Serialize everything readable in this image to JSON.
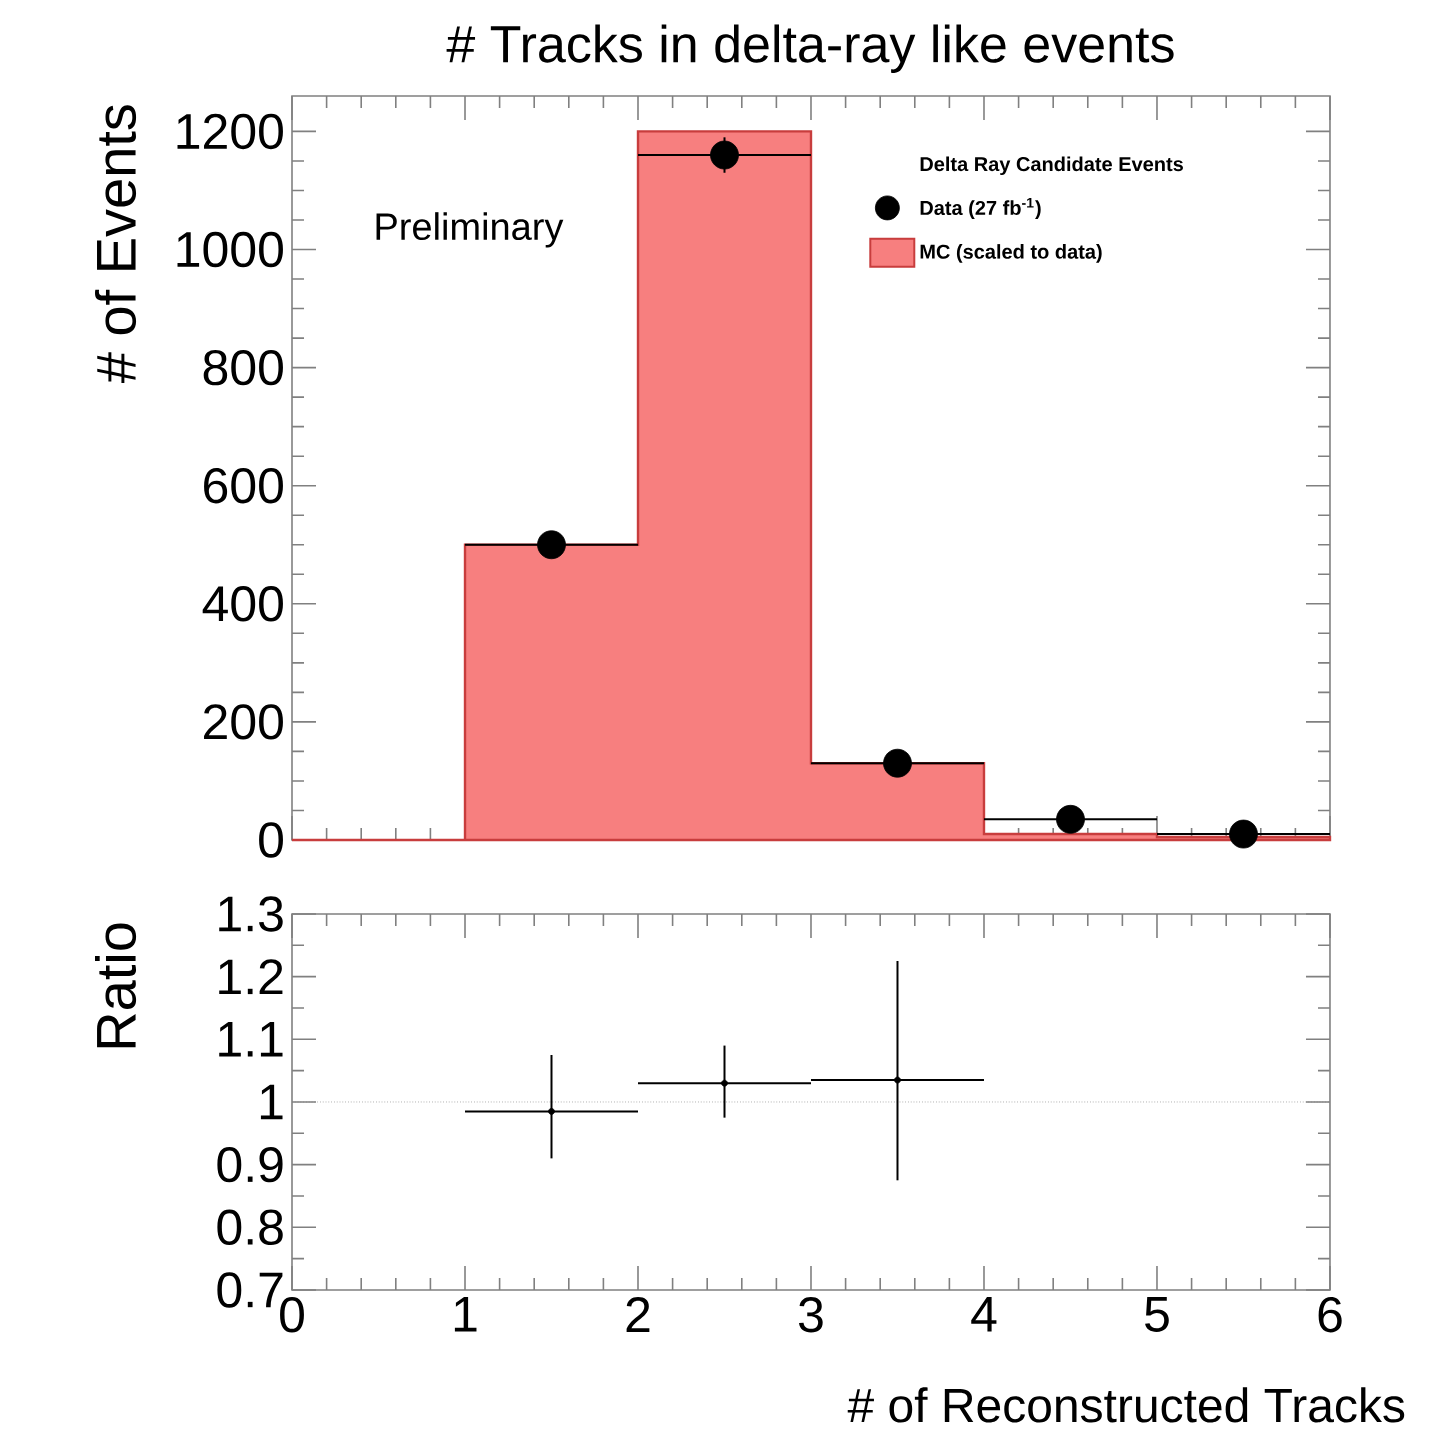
{
  "chart_data": [
    {
      "type": "histogram",
      "title": "# Tracks in delta-ray like events",
      "ylabel": "# of Events",
      "legend_title": "Delta Ray Candidate Events",
      "annotations": [
        "Preliminary"
      ],
      "bins": [
        0,
        1,
        2,
        3,
        4,
        5,
        6
      ],
      "series": [
        {
          "name": "MC (scaled to data)",
          "type": "histogram",
          "color": "#f77f7f",
          "values": [
            0,
            500,
            1200,
            130,
            10,
            5
          ]
        },
        {
          "name": "Data (27 fb$^{-1}$)",
          "type": "scatter",
          "color": "#000000",
          "x": [
            1.5,
            2.5,
            3.5,
            4.5,
            5.5
          ],
          "values": [
            500,
            1160,
            130,
            35,
            10
          ],
          "errors": [
            null,
            [
              1130,
              1190
            ],
            null,
            null,
            null
          ],
          "xerrors": [
            0.5,
            0.5,
            0.5,
            0.5,
            0.5
          ],
          "marker": "circle"
        }
      ],
      "xlim": [
        0,
        6
      ],
      "xticks": [
        0,
        1,
        2,
        3,
        4,
        5,
        6
      ],
      "ylim": [
        0,
        1260
      ],
      "yticks": [
        0,
        200,
        400,
        600,
        800,
        1000,
        1200
      ],
      "tick_labels": "y",
      "legend": "top right"
    },
    {
      "type": "scatter",
      "xlabel": "# of Reconstructed Tracks",
      "ylabel": "Ratio",
      "color": "#000000",
      "x": [
        1.5,
        2.5,
        3.5
      ],
      "values": [
        0.985,
        1.03,
        1.035
      ],
      "errors": [
        [
          0.91,
          1.075
        ],
        [
          0.975,
          1.09
        ],
        [
          0.875,
          1.225
        ]
      ],
      "xerrors": [
        0.5,
        0.5,
        0.5
      ],
      "xlim": [
        0,
        6
      ],
      "xticks": [
        0,
        1,
        2,
        3,
        4,
        5,
        6
      ],
      "ylim": [
        0.7,
        1.3
      ],
      "yticks": [
        0.7,
        0.8,
        0.9,
        1,
        1.1,
        1.2,
        1.3
      ],
      "ref_lines": [
        {
          "axis": "y",
          "value": 1,
          "color": "#888888",
          "line_style": "dotted"
        }
      ],
      "marker": "circle"
    }
  ]
}
